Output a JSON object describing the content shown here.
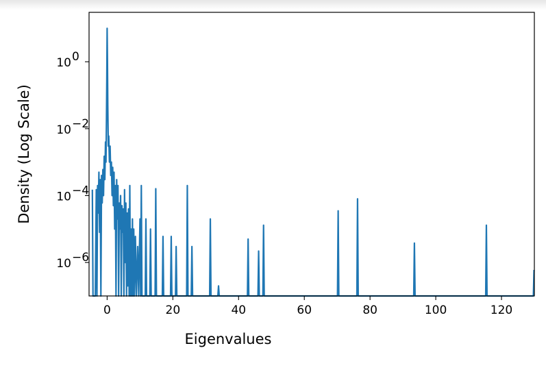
{
  "chart_data": {
    "type": "line",
    "xlabel": "Eigenvalues",
    "ylabel": "Density (Log Scale)",
    "xlim": [
      -5.5,
      130
    ],
    "ylim": [
      1e-07,
      30.0
    ],
    "yscale": "log",
    "grid": false,
    "legend": "none",
    "x_ticks": [
      {
        "value": 0,
        "label": "0"
      },
      {
        "value": 20,
        "label": "20"
      },
      {
        "value": 40,
        "label": "40"
      },
      {
        "value": 60,
        "label": "60"
      },
      {
        "value": 80,
        "label": "80"
      },
      {
        "value": 100,
        "label": "100"
      },
      {
        "value": 120,
        "label": "120"
      }
    ],
    "y_ticks": [
      {
        "value": 1e-06,
        "base": "10",
        "exp": "−6"
      },
      {
        "value": 0.0001,
        "base": "10",
        "exp": "−4"
      },
      {
        "value": 0.01,
        "base": "10",
        "exp": "−2"
      },
      {
        "value": 1,
        "base": "10",
        "exp": "0"
      }
    ],
    "series": [
      {
        "color": "#1f77b4",
        "baseline": 1e-07,
        "points": [
          [
            -4.5,
            0.00015
          ],
          [
            -4.3,
            1e-07
          ],
          [
            -3.6,
            1e-07
          ],
          [
            -3.3,
            0.00015
          ],
          [
            -3.1,
            1e-07
          ],
          [
            -2.9,
            0.0002
          ],
          [
            -2.7,
            3e-05
          ],
          [
            -2.5,
            0.0005
          ],
          [
            -2.3,
            8e-06
          ],
          [
            -2.1,
            0.0003
          ],
          [
            -1.9,
            1e-07
          ],
          [
            -1.7,
            0.0004
          ],
          [
            -1.5,
            6e-05
          ],
          [
            -1.3,
            0.0006
          ],
          [
            -1.1,
            0.0001
          ],
          [
            -0.9,
            0.0015
          ],
          [
            -0.7,
            0.0003
          ],
          [
            -0.5,
            0.004
          ],
          [
            -0.35,
            0.001
          ],
          [
            -0.2,
            0.02
          ],
          [
            -0.1,
            0.3
          ],
          [
            0.0,
            10
          ],
          [
            0.1,
            1.0
          ],
          [
            0.2,
            0.05
          ],
          [
            0.35,
            0.003
          ],
          [
            0.5,
            0.006
          ],
          [
            0.7,
            0.001
          ],
          [
            0.9,
            0.003
          ],
          [
            1.1,
            0.0004
          ],
          [
            1.3,
            0.001
          ],
          [
            1.5,
            0.0001
          ],
          [
            1.7,
            0.0007
          ],
          [
            1.9,
            5e-05
          ],
          [
            2.1,
            0.0005
          ],
          [
            2.3,
            1e-05
          ],
          [
            2.5,
            0.0002
          ],
          [
            2.7,
            1e-07
          ],
          [
            2.9,
            0.0003
          ],
          [
            3.1,
            2e-05
          ],
          [
            3.3,
            0.0002
          ],
          [
            3.5,
            1e-07
          ],
          [
            3.7,
            6e-05
          ],
          [
            3.9,
            1e-05
          ],
          [
            4.1,
            0.0001
          ],
          [
            4.3,
            1e-07
          ],
          [
            4.5,
            5e-05
          ],
          [
            4.7,
            8e-06
          ],
          [
            4.9,
            4e-05
          ],
          [
            5.1,
            1e-07
          ],
          [
            5.3,
            0.00015
          ],
          [
            5.5,
            1e-06
          ],
          [
            5.7,
            6e-05
          ],
          [
            5.9,
            1e-07
          ],
          [
            6.1,
            3e-05
          ],
          [
            6.3,
            2e-07
          ],
          [
            6.5,
            4e-05
          ],
          [
            6.7,
            1e-07
          ],
          [
            6.9,
            0.0002
          ],
          [
            7.1,
            1e-07
          ],
          [
            7.3,
            1e-05
          ],
          [
            7.5,
            1e-07
          ],
          [
            7.7,
            2e-05
          ],
          [
            7.9,
            1e-07
          ],
          [
            8.1,
            1e-05
          ],
          [
            8.3,
            1e-07
          ],
          [
            8.6,
            6e-06
          ],
          [
            8.9,
            1e-07
          ],
          [
            9.3,
            3e-06
          ],
          [
            9.6,
            1e-07
          ],
          [
            10.0,
            2e-05
          ],
          [
            10.2,
            1e-07
          ],
          [
            10.4,
            0.0002
          ],
          [
            10.6,
            1e-07
          ],
          [
            11.6,
            1e-07
          ],
          [
            11.8,
            2e-05
          ],
          [
            12.0,
            1e-07
          ],
          [
            13.0,
            1e-07
          ],
          [
            13.2,
            1e-05
          ],
          [
            13.4,
            1e-07
          ],
          [
            14.6,
            1e-07
          ],
          [
            14.8,
            0.00016
          ],
          [
            15.0,
            1e-07
          ],
          [
            16.8,
            1e-07
          ],
          [
            17.0,
            6e-06
          ],
          [
            17.2,
            1e-07
          ],
          [
            19.3,
            1e-07
          ],
          [
            19.5,
            6e-06
          ],
          [
            19.7,
            1e-07
          ],
          [
            20.8,
            1e-07
          ],
          [
            21.0,
            3e-06
          ],
          [
            21.2,
            1e-07
          ],
          [
            24.2,
            1e-07
          ],
          [
            24.4,
            0.0002
          ],
          [
            24.6,
            1e-07
          ],
          [
            25.6,
            1e-07
          ],
          [
            25.8,
            3e-06
          ],
          [
            26.0,
            1e-07
          ],
          [
            31.2,
            1e-07
          ],
          [
            31.4,
            2e-05
          ],
          [
            31.6,
            1e-07
          ],
          [
            33.7,
            1e-07
          ],
          [
            33.9,
            2e-07
          ],
          [
            34.1,
            1e-07
          ],
          [
            42.7,
            1e-07
          ],
          [
            42.9,
            5e-06
          ],
          [
            43.1,
            1e-07
          ],
          [
            45.9,
            1e-07
          ],
          [
            46.1,
            2.2e-06
          ],
          [
            46.3,
            1e-07
          ],
          [
            47.4,
            1e-07
          ],
          [
            47.6,
            1.3e-05
          ],
          [
            47.8,
            1e-07
          ],
          [
            70.1,
            1e-07
          ],
          [
            70.3,
            3.5e-05
          ],
          [
            70.5,
            1e-07
          ],
          [
            76.0,
            1e-07
          ],
          [
            76.2,
            8e-05
          ],
          [
            76.4,
            1e-07
          ],
          [
            93.3,
            1e-07
          ],
          [
            93.5,
            3.8e-06
          ],
          [
            93.7,
            1e-07
          ],
          [
            115.2,
            1e-07
          ],
          [
            115.4,
            1.3e-05
          ],
          [
            115.6,
            1e-07
          ],
          [
            129.7,
            1e-07
          ],
          [
            129.9,
            6e-07
          ]
        ]
      }
    ]
  }
}
